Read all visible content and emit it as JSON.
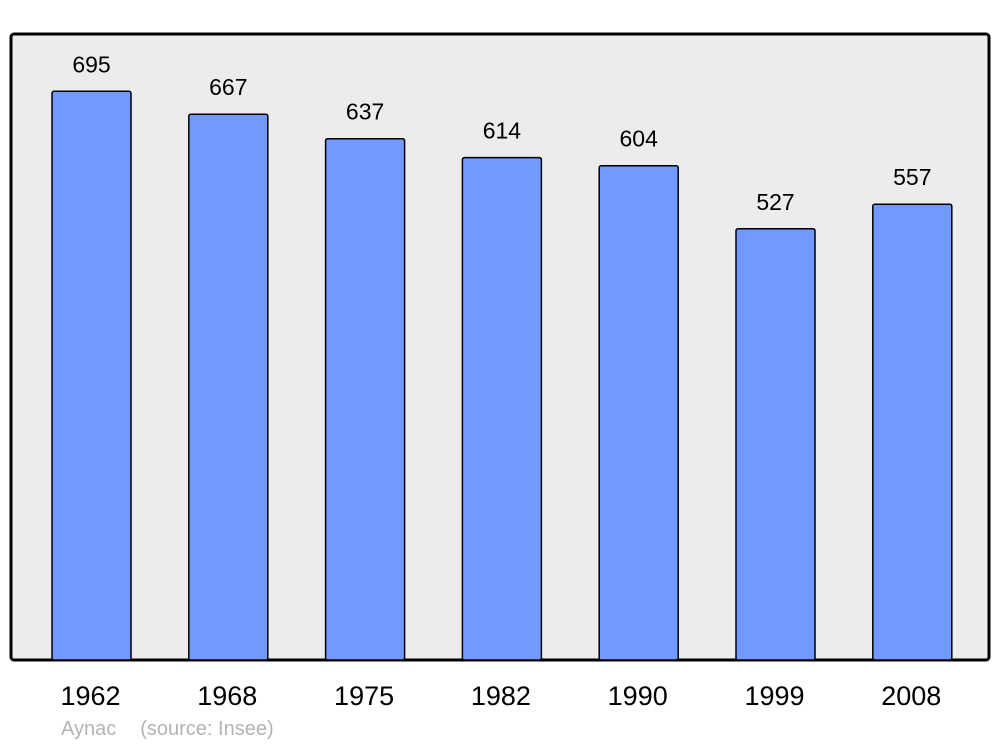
{
  "chart_data": {
    "type": "bar",
    "categories": [
      "1962",
      "1968",
      "1975",
      "1982",
      "1990",
      "1999",
      "2008"
    ],
    "values": [
      695,
      667,
      637,
      614,
      604,
      527,
      557
    ],
    "data_labels": true,
    "ylim": [
      0,
      765
    ],
    "grid": false,
    "legend": "none",
    "title": "",
    "xlabel": "",
    "ylabel": "",
    "colors": {
      "bar": "#7299ff",
      "plot_background": "#ececec",
      "stroke": "#000000"
    }
  },
  "footer": {
    "place": "Aynac",
    "source": "(source: Insee)"
  }
}
